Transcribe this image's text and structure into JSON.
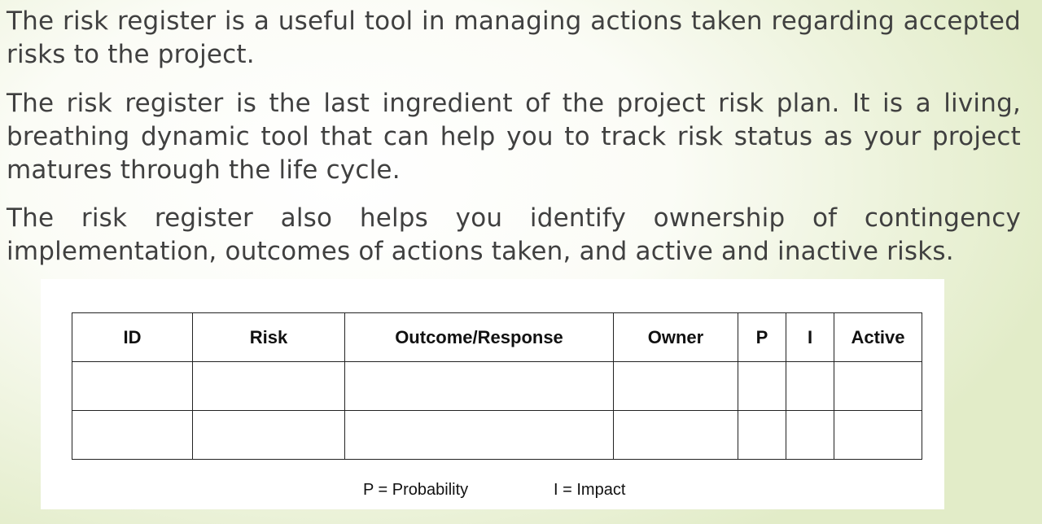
{
  "paragraphs": [
    "The risk register is a useful tool in managing actions taken regarding accepted risks to the project.",
    "The risk register is the last ingredient of the project risk plan. It is a living, breathing dynamic tool that can help you to track risk status as your project matures through the life cycle.",
    "The risk register also helps you identify ownership of contingency implementation, outcomes of actions taken, and active and inactive risks."
  ],
  "table": {
    "headers": [
      "ID",
      "Risk",
      "Outcome/Response",
      "Owner",
      "P",
      "I",
      "Active"
    ],
    "rows": [
      [
        "",
        "",
        "",
        "",
        "",
        "",
        ""
      ],
      [
        "",
        "",
        "",
        "",
        "",
        "",
        ""
      ]
    ]
  },
  "legend": {
    "probability": "P = Probability",
    "impact": "I = Impact"
  }
}
